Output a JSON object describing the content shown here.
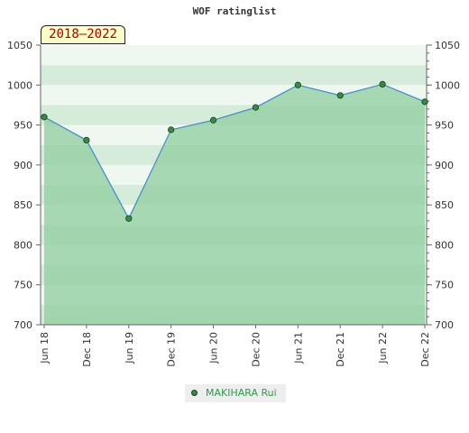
{
  "title": "WOF ratinglist",
  "period_label": "2018–2022",
  "chart_data": {
    "type": "area",
    "title": "WOF ratinglist",
    "ylim": [
      700,
      1050
    ],
    "y_ticks": [
      700,
      750,
      800,
      850,
      900,
      950,
      1000,
      1050
    ],
    "x_ticks": [
      "Jun 18",
      "Dec 18",
      "Jun 19",
      "Dec 19",
      "Jun 20",
      "Dec 20",
      "Jun 21",
      "Dec 21",
      "Jun 22",
      "Dec 22"
    ],
    "series": [
      {
        "name": "MAKIHARA Rui",
        "x": [
          "Jun 18",
          "Dec 18",
          "Jun 19",
          "Dec 19",
          "Jun 20",
          "Dec 20",
          "Jun 21",
          "Dec 21",
          "Jun 22",
          "Dec 22"
        ],
        "values": [
          960,
          931,
          833,
          944,
          956,
          972,
          1000,
          987,
          1001,
          979
        ]
      }
    ],
    "legend_position": "bottom",
    "colors": {
      "line": "#4a8fc9",
      "marker": "#3a8a46",
      "fill": "#8ccc9c",
      "band_dark": "#d6ecdb",
      "band_light": "#eef8f0",
      "legend_text": "#2e9a4e"
    }
  }
}
